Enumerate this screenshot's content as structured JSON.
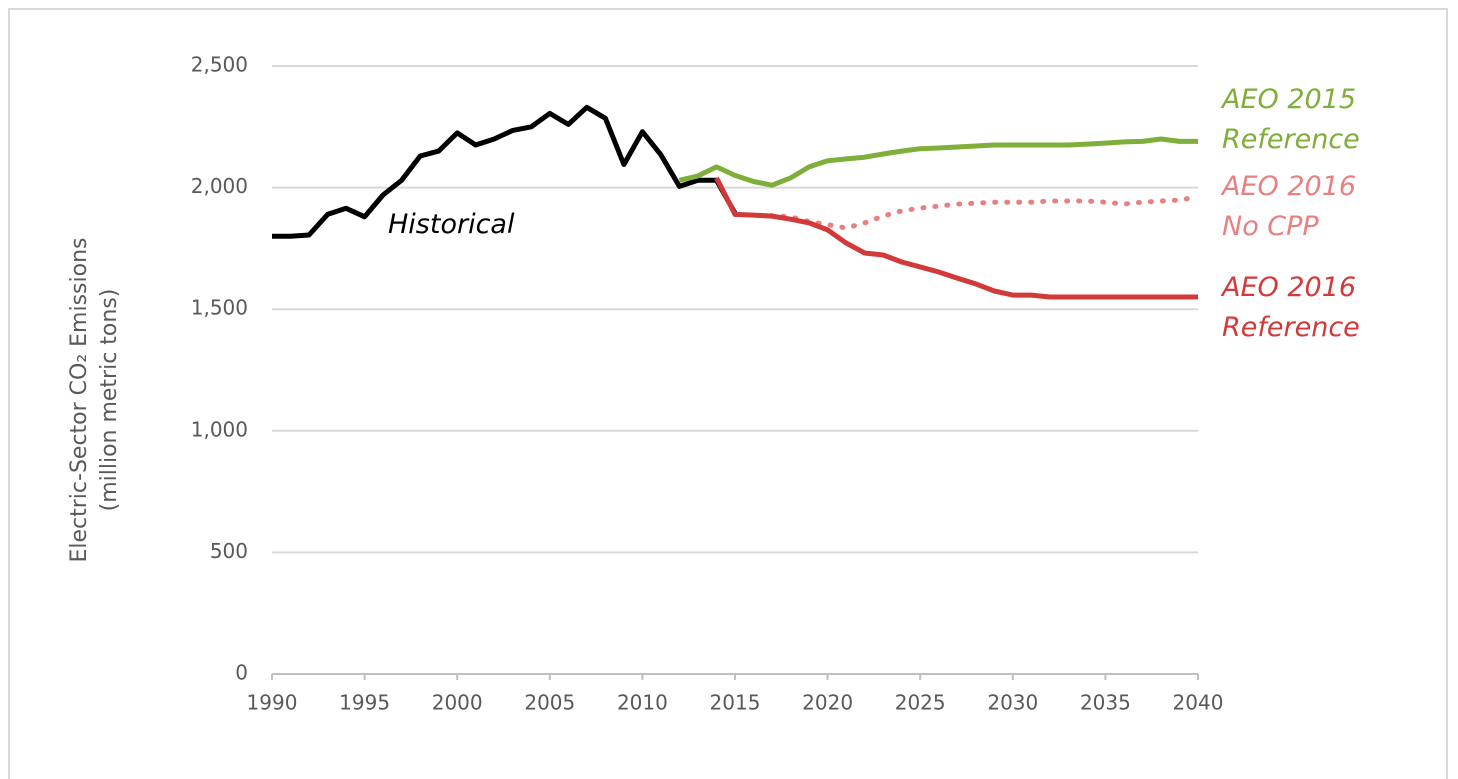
{
  "chart_data": {
    "type": "line",
    "y_label": "Electric-Sector CO₂ Emissions\n(million metric tons)",
    "x": [
      1990,
      1991,
      1992,
      1993,
      1994,
      1995,
      1996,
      1997,
      1998,
      1999,
      2000,
      2001,
      2002,
      2003,
      2004,
      2005,
      2006,
      2007,
      2008,
      2009,
      2010,
      2011,
      2012,
      2013,
      2014,
      2015,
      2016,
      2017,
      2018,
      2019,
      2020,
      2021,
      2022,
      2023,
      2024,
      2025,
      2026,
      2027,
      2028,
      2029,
      2030,
      2031,
      2032,
      2033,
      2034,
      2035,
      2036,
      2037,
      2038,
      2039,
      2040
    ],
    "xlim": [
      1990,
      2040
    ],
    "xticks": [
      1990,
      1995,
      2000,
      2005,
      2010,
      2015,
      2020,
      2025,
      2030,
      2035,
      2040
    ],
    "ylim": [
      0,
      2500
    ],
    "yticks": [
      0,
      500,
      {
        "value": 1000,
        "label": "1,000"
      },
      {
        "value": 1500,
        "label": "1,500"
      },
      {
        "value": 2000,
        "label": "2,000"
      },
      {
        "value": 2500,
        "label": "2,500"
      }
    ],
    "grid": true,
    "series": [
      {
        "name": "Historical",
        "color": "#000000",
        "style": "solid",
        "values": [
          1800,
          1800,
          1805,
          1890,
          1915,
          1880,
          1970,
          2030,
          2130,
          2150,
          2225,
          2175,
          2200,
          2235,
          2250,
          2305,
          2260,
          2330,
          2285,
          2095,
          2230,
          2135,
          2005,
          2030,
          2030,
          1895,
          null,
          null,
          null,
          null,
          null,
          null,
          null,
          null,
          null,
          null,
          null,
          null,
          null,
          null,
          null,
          null,
          null,
          null,
          null,
          null,
          null,
          null,
          null,
          null,
          null
        ]
      },
      {
        "name": "AEO 2015\nReference",
        "color": "#7fae3a",
        "style": "solid",
        "values": [
          null,
          null,
          null,
          null,
          null,
          null,
          null,
          null,
          null,
          null,
          null,
          null,
          null,
          null,
          null,
          null,
          null,
          null,
          null,
          null,
          null,
          null,
          2030,
          2048,
          2085,
          2050,
          2025,
          2010,
          2040,
          2085,
          2110,
          2118,
          2125,
          2138,
          2150,
          2160,
          2163,
          2167,
          2171,
          2175,
          2175,
          2175,
          2175,
          2175,
          2179,
          2183,
          2188,
          2190,
          2200,
          2190,
          2190
        ]
      },
      {
        "name": "AEO 2016\nNo CPP",
        "color": "#e98080",
        "style": "dotted",
        "values": [
          null,
          null,
          null,
          null,
          null,
          null,
          null,
          null,
          null,
          null,
          null,
          null,
          null,
          null,
          null,
          null,
          null,
          null,
          null,
          null,
          null,
          null,
          null,
          null,
          null,
          1890,
          1887,
          1885,
          1880,
          1860,
          1848,
          1834,
          1855,
          1883,
          1904,
          1916,
          1924,
          1932,
          1936,
          1940,
          1940,
          1940,
          1945,
          1945,
          1945,
          1940,
          1932,
          1940,
          1945,
          1949,
          1962
        ]
      },
      {
        "name": "AEO 2016\nReference",
        "color": "#d23a3a",
        "style": "solid",
        "values": [
          null,
          null,
          null,
          null,
          null,
          null,
          null,
          null,
          null,
          null,
          null,
          null,
          null,
          null,
          null,
          null,
          null,
          null,
          null,
          null,
          null,
          null,
          null,
          null,
          2040,
          1890,
          1887,
          1883,
          1870,
          1855,
          1826,
          1772,
          1731,
          1723,
          1694,
          1674,
          1653,
          1628,
          1604,
          1575,
          1558,
          1558,
          1550,
          1550,
          1550,
          1550,
          1550,
          1550,
          1550,
          1550,
          1550
        ]
      }
    ]
  }
}
